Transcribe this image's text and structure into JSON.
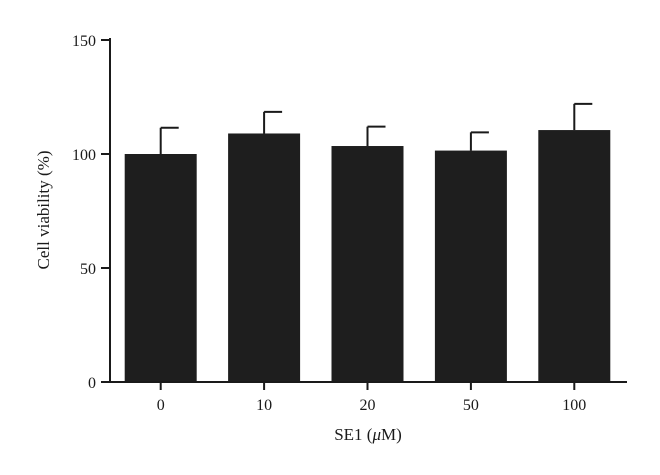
{
  "chart_data": {
    "type": "bar",
    "categories": [
      "0",
      "10",
      "20",
      "50",
      "100"
    ],
    "values": [
      100,
      109,
      103.5,
      101.5,
      110.5
    ],
    "errors": [
      11.5,
      9.5,
      8.5,
      8,
      11.5
    ],
    "title": "",
    "xlabel_prefix": "SE1 (",
    "xlabel_mu": "μ",
    "xlabel_suffix": "M)",
    "ylabel": "Cell viability (%)",
    "ylim": [
      0,
      150
    ],
    "yticks": [
      "0",
      "50",
      "100",
      "150"
    ],
    "grid": false,
    "legend": "none",
    "bar_color": "#1e1e1e"
  }
}
